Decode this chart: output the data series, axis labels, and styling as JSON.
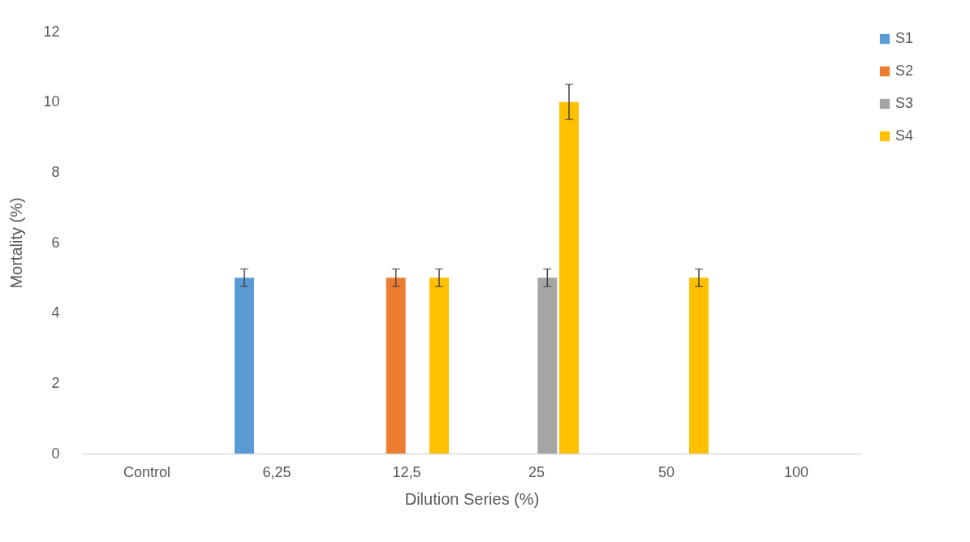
{
  "chart_data": {
    "type": "bar",
    "xlabel": "Dilution Series (%)",
    "ylabel": "Mortality (%)",
    "categories": [
      "Control",
      "6,25",
      "12,5",
      "25",
      "50",
      "100"
    ],
    "series": [
      {
        "name": "S1",
        "color": "#5b9bd5",
        "values": [
          0,
          5,
          0,
          0,
          0,
          0
        ],
        "errors": [
          null,
          0.25,
          null,
          null,
          null,
          null
        ]
      },
      {
        "name": "S2",
        "color": "#ed7d31",
        "values": [
          0,
          0,
          5,
          0,
          0,
          0
        ],
        "errors": [
          null,
          null,
          0.25,
          null,
          null,
          null
        ]
      },
      {
        "name": "S3",
        "color": "#a5a5a5",
        "values": [
          0,
          0,
          0,
          5,
          0,
          0
        ],
        "errors": [
          null,
          null,
          null,
          0.25,
          null,
          null
        ]
      },
      {
        "name": "S4",
        "color": "#ffc000",
        "values": [
          0,
          0,
          5,
          10,
          5,
          0
        ],
        "errors": [
          null,
          null,
          0.25,
          0.5,
          0.25,
          null
        ]
      }
    ],
    "ylim": [
      0,
      12
    ],
    "yticks": [
      0,
      2,
      4,
      6,
      8,
      10,
      12
    ],
    "legend": "right"
  }
}
